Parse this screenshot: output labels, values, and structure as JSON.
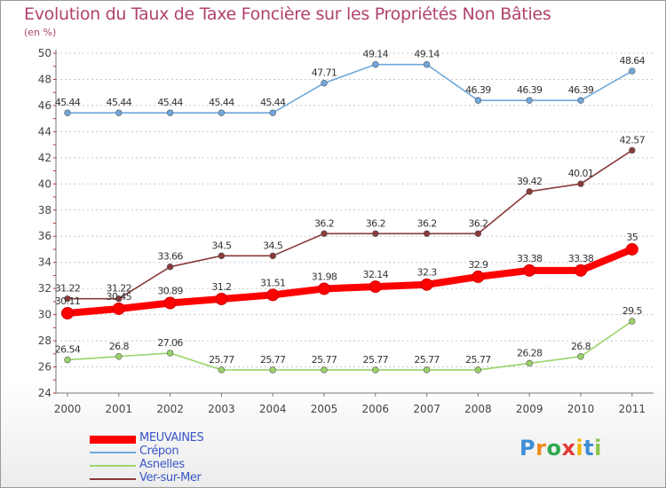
{
  "chart_data": {
    "type": "line",
    "title": "Evolution du Taux de Taxe Foncière sur les Propriétés Non Bâties",
    "subtitle": "(en %)",
    "categories": [
      "2000",
      "2001",
      "2002",
      "2003",
      "2004",
      "2005",
      "2006",
      "2007",
      "2008",
      "2009",
      "2010",
      "2011"
    ],
    "ylim": [
      24,
      50
    ],
    "yticks": [
      24,
      26,
      28,
      30,
      32,
      34,
      36,
      38,
      40,
      42,
      44,
      46,
      48,
      50
    ],
    "grid": "horizontal dashed",
    "legend_position": "bottom-left",
    "series": [
      {
        "name": "MEUVAINES",
        "color": "#ff0000",
        "highlight": true,
        "values": [
          30.11,
          30.45,
          30.89,
          31.2,
          31.51,
          31.98,
          32.14,
          32.3,
          32.9,
          33.38,
          33.38,
          35
        ],
        "labels": [
          "30.11",
          "30.45",
          "30.89",
          "31.2",
          "31.51",
          "31.98",
          "32.14",
          "32.3",
          "32.9",
          "33.38",
          "33.38",
          "35"
        ]
      },
      {
        "name": "Crépon",
        "color": "#6fa8dc",
        "highlight": false,
        "values": [
          45.44,
          45.44,
          45.44,
          45.44,
          45.44,
          47.71,
          49.14,
          49.14,
          46.39,
          46.39,
          46.39,
          48.64
        ],
        "labels": [
          "45.44",
          "45.44",
          "45.44",
          "45.44",
          "45.44",
          "47.71",
          "49.14",
          "49.14",
          "46.39",
          "46.39",
          "46.39",
          "48.64"
        ]
      },
      {
        "name": "Asnelles",
        "color": "#9ad36a",
        "highlight": false,
        "values": [
          26.54,
          26.8,
          27.06,
          25.77,
          25.77,
          25.77,
          25.77,
          25.77,
          25.77,
          26.28,
          26.8,
          29.5
        ],
        "labels": [
          "26.54",
          "26.8",
          "27.06",
          "25.77",
          "25.77",
          "25.77",
          "25.77",
          "25.77",
          "25.77",
          "26.28",
          "26.8",
          "29.5"
        ]
      },
      {
        "name": "Ver-sur-Mer",
        "color": "#8b3a3a",
        "highlight": false,
        "values": [
          31.22,
          31.22,
          33.66,
          34.5,
          34.5,
          36.2,
          36.2,
          36.2,
          36.2,
          39.42,
          40.01,
          42.57
        ],
        "labels": [
          "31.22",
          "31.22",
          "33.66",
          "34.5",
          "34.5",
          "36.2",
          "36.2",
          "36.2",
          "36.2",
          "39.42",
          "40.01",
          "42.57"
        ]
      }
    ]
  },
  "legend": {
    "items": [
      "MEUVAINES",
      "Crépon",
      "Asnelles",
      "Ver-sur-Mer"
    ]
  },
  "brand": {
    "letters": [
      "P",
      "r",
      "o",
      "x",
      "i",
      "t",
      "i"
    ],
    "colors": [
      "#3d8ed6",
      "#f08a1c",
      "#2fa84f",
      "#e53935",
      "#f0b400",
      "#3d8ed6",
      "#8bc34a"
    ]
  }
}
